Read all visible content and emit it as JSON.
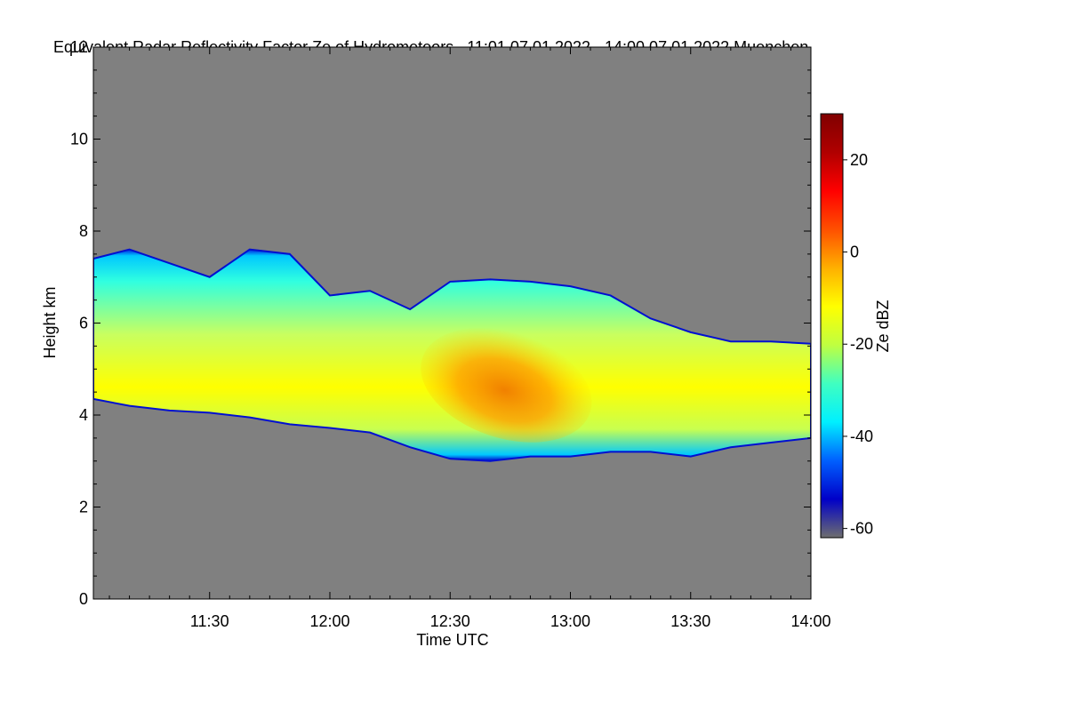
{
  "chart_data": {
    "type": "heatmap",
    "title": "Equivalent Radar Reflectivity Factor Ze of Hydrometeors",
    "time_range": "11:01 07.01.2022 - 14:00 07.01.2022",
    "location": "Muenchen",
    "xlabel": "Time UTC",
    "ylabel": "Height km",
    "x_range_min": [
      661,
      840
    ],
    "xticks": [
      {
        "value": 690,
        "label": "11:30"
      },
      {
        "value": 720,
        "label": "12:00"
      },
      {
        "value": 750,
        "label": "12:30"
      },
      {
        "value": 780,
        "label": "13:00"
      },
      {
        "value": 810,
        "label": "13:30"
      },
      {
        "value": 840,
        "label": "14:00"
      }
    ],
    "ylim": [
      0,
      12
    ],
    "yticks": [
      0,
      2,
      4,
      6,
      8,
      10,
      12
    ],
    "colorbar": {
      "label": "Ze dBZ",
      "range": [
        -62,
        30
      ],
      "ticks": [
        20,
        0,
        -20,
        -40,
        -60
      ],
      "colors": [
        "#6e6e6e",
        "#0000c8",
        "#0060ff",
        "#00f0ff",
        "#40ffc0",
        "#c0ff40",
        "#ffff00",
        "#ffb000",
        "#ff5000",
        "#ff0000",
        "#b00000",
        "#800000"
      ]
    },
    "background_color": "#808080",
    "cloud_profile": [
      {
        "t": 661,
        "base": 4.35,
        "top": 7.4
      },
      {
        "t": 670,
        "base": 4.2,
        "top": 7.6
      },
      {
        "t": 680,
        "base": 4.1,
        "top": 7.3
      },
      {
        "t": 690,
        "base": 4.05,
        "top": 7.0
      },
      {
        "t": 700,
        "base": 3.95,
        "top": 7.6
      },
      {
        "t": 710,
        "base": 3.8,
        "top": 7.5
      },
      {
        "t": 720,
        "base": 3.72,
        "top": 6.6
      },
      {
        "t": 730,
        "base": 3.62,
        "top": 6.7
      },
      {
        "t": 740,
        "base": 3.3,
        "top": 6.3
      },
      {
        "t": 750,
        "base": 3.05,
        "top": 6.9
      },
      {
        "t": 760,
        "base": 3.0,
        "top": 6.95
      },
      {
        "t": 770,
        "base": 3.1,
        "top": 6.9
      },
      {
        "t": 780,
        "base": 3.1,
        "top": 6.8
      },
      {
        "t": 790,
        "base": 3.2,
        "top": 6.6
      },
      {
        "t": 800,
        "base": 3.2,
        "top": 6.1
      },
      {
        "t": 810,
        "base": 3.1,
        "top": 5.8
      },
      {
        "t": 820,
        "base": 3.3,
        "top": 5.6
      },
      {
        "t": 830,
        "base": 3.4,
        "top": 5.6
      },
      {
        "t": 840,
        "base": 3.5,
        "top": 5.55
      }
    ],
    "core_region": {
      "t_start": 742,
      "t_end": 786,
      "height_min": 3.5,
      "height_max": 5.8,
      "ze_max_dbz": 8
    }
  }
}
